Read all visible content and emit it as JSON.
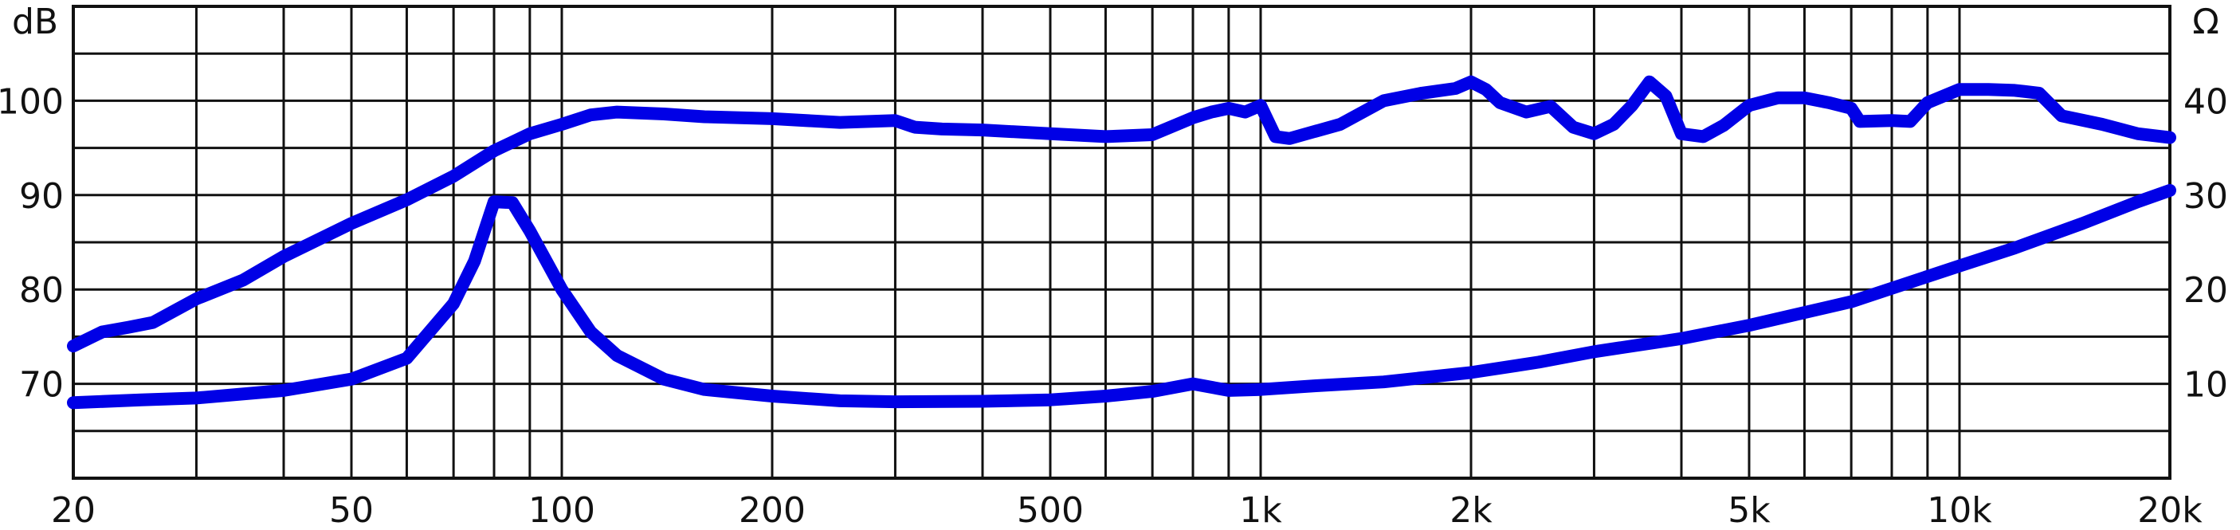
{
  "chart_data": {
    "type": "line",
    "title": "",
    "xscale": "log",
    "xlim": [
      20,
      20000
    ],
    "x_ticks": [
      {
        "value": 20,
        "label": "20"
      },
      {
        "value": 50,
        "label": "50"
      },
      {
        "value": 100,
        "label": "100"
      },
      {
        "value": 200,
        "label": "200"
      },
      {
        "value": 500,
        "label": "500"
      },
      {
        "value": 1000,
        "label": "1k"
      },
      {
        "value": 2000,
        "label": "2k"
      },
      {
        "value": 5000,
        "label": "5k"
      },
      {
        "value": 10000,
        "label": "10k"
      },
      {
        "value": 20000,
        "label": "20k"
      }
    ],
    "y_left": {
      "unit": "dB",
      "ylim": [
        60,
        110
      ],
      "ticks": [
        {
          "value": 70,
          "label": "70"
        },
        {
          "value": 80,
          "label": "80"
        },
        {
          "value": 90,
          "label": "90"
        },
        {
          "value": 100,
          "label": "100"
        }
      ]
    },
    "y_right": {
      "unit": "Ω",
      "ylim": [
        0,
        50
      ],
      "ticks": [
        {
          "value": 10,
          "label": "10"
        },
        {
          "value": 20,
          "label": "20"
        },
        {
          "value": 30,
          "label": "30"
        },
        {
          "value": 40,
          "label": "40"
        }
      ]
    },
    "grid": true,
    "series": [
      {
        "axis": "left",
        "color": "#0000e6",
        "points": [
          [
            20,
            74
          ],
          [
            22,
            75.5
          ],
          [
            24,
            76
          ],
          [
            26,
            76.5
          ],
          [
            30,
            79
          ],
          [
            35,
            81
          ],
          [
            40,
            83.5
          ],
          [
            50,
            87
          ],
          [
            60,
            89.5
          ],
          [
            70,
            92
          ],
          [
            80,
            94.7
          ],
          [
            90,
            96.5
          ],
          [
            100,
            97.5
          ],
          [
            110,
            98.5
          ],
          [
            120,
            98.8
          ],
          [
            140,
            98.6
          ],
          [
            160,
            98.3
          ],
          [
            200,
            98.1
          ],
          [
            250,
            97.7
          ],
          [
            300,
            97.9
          ],
          [
            320,
            97.2
          ],
          [
            350,
            97
          ],
          [
            400,
            96.9
          ],
          [
            500,
            96.5
          ],
          [
            600,
            96.2
          ],
          [
            700,
            96.4
          ],
          [
            800,
            98.2
          ],
          [
            850,
            98.8
          ],
          [
            900,
            99.2
          ],
          [
            950,
            98.8
          ],
          [
            1000,
            99.5
          ],
          [
            1050,
            96.2
          ],
          [
            1100,
            96
          ],
          [
            1300,
            97.5
          ],
          [
            1500,
            100
          ],
          [
            1700,
            100.8
          ],
          [
            1900,
            101.3
          ],
          [
            2000,
            102
          ],
          [
            2100,
            101.2
          ],
          [
            2200,
            99.8
          ],
          [
            2400,
            98.8
          ],
          [
            2600,
            99.4
          ],
          [
            2800,
            97.2
          ],
          [
            3000,
            96.5
          ],
          [
            3200,
            97.5
          ],
          [
            3400,
            99.5
          ],
          [
            3600,
            102
          ],
          [
            3800,
            100.5
          ],
          [
            4000,
            96.5
          ],
          [
            4300,
            96.2
          ],
          [
            4600,
            97.4
          ],
          [
            5000,
            99.5
          ],
          [
            5500,
            100.3
          ],
          [
            6000,
            100.3
          ],
          [
            6500,
            99.8
          ],
          [
            7000,
            99.2
          ],
          [
            7200,
            97.8
          ],
          [
            8000,
            97.9
          ],
          [
            8500,
            97.8
          ],
          [
            9000,
            99.8
          ],
          [
            10000,
            101.2
          ],
          [
            11000,
            101.2
          ],
          [
            12000,
            101.1
          ],
          [
            13000,
            100.8
          ],
          [
            14000,
            98.4
          ],
          [
            16000,
            97.5
          ],
          [
            18000,
            96.5
          ],
          [
            20000,
            96.1
          ]
        ]
      },
      {
        "axis": "right",
        "color": "#0000e6",
        "points": [
          [
            20,
            8
          ],
          [
            25,
            8.3
          ],
          [
            30,
            8.5
          ],
          [
            40,
            9.3
          ],
          [
            50,
            10.5
          ],
          [
            60,
            12.7
          ],
          [
            70,
            18.5
          ],
          [
            75,
            23
          ],
          [
            80,
            29.3
          ],
          [
            85,
            29.2
          ],
          [
            90,
            26.2
          ],
          [
            100,
            20
          ],
          [
            110,
            15.5
          ],
          [
            120,
            13
          ],
          [
            140,
            10.5
          ],
          [
            160,
            9.4
          ],
          [
            200,
            8.7
          ],
          [
            250,
            8.2
          ],
          [
            300,
            8.1
          ],
          [
            400,
            8.15
          ],
          [
            500,
            8.3
          ],
          [
            600,
            8.7
          ],
          [
            700,
            9.2
          ],
          [
            800,
            10
          ],
          [
            900,
            9.3
          ],
          [
            1000,
            9.4
          ],
          [
            1200,
            9.8
          ],
          [
            1500,
            10.2
          ],
          [
            2000,
            11.2
          ],
          [
            2500,
            12.3
          ],
          [
            3000,
            13.4
          ],
          [
            4000,
            14.8
          ],
          [
            5000,
            16.2
          ],
          [
            7000,
            18.7
          ],
          [
            10000,
            22.5
          ],
          [
            12000,
            24.4
          ],
          [
            15000,
            27
          ],
          [
            18000,
            29.3
          ],
          [
            20000,
            30.5
          ]
        ]
      }
    ]
  }
}
